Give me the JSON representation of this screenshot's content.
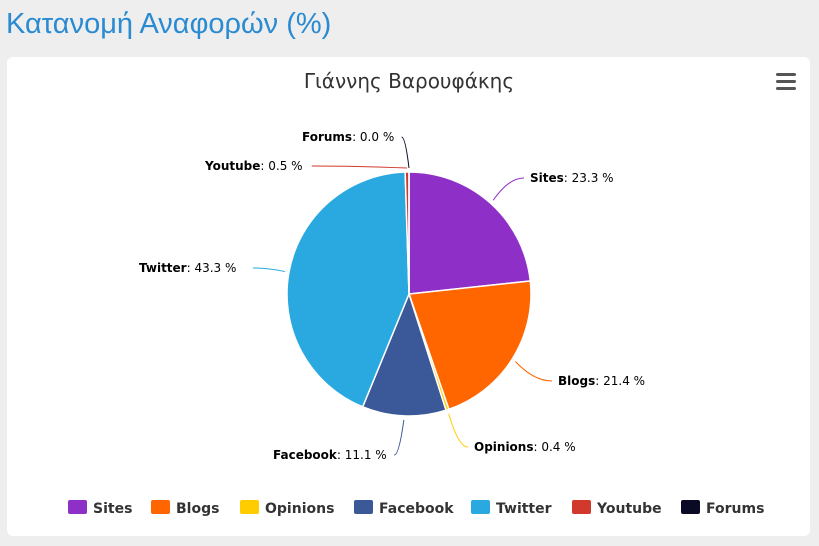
{
  "page": {
    "heading": "Κατανομή Αναφορών (%)"
  },
  "chart_data": {
    "type": "pie",
    "title": "Γιάννης Βαρουφάκης",
    "legend_position": "bottom",
    "slices": [
      {
        "name": "Sites",
        "value": 23.3,
        "label": "23.3 %",
        "color": "#8e2fc8"
      },
      {
        "name": "Blogs",
        "value": 21.4,
        "label": "21.4 %",
        "color": "#ff6600"
      },
      {
        "name": "Opinions",
        "value": 0.4,
        "label": "0.4 %",
        "color": "#ffcc00"
      },
      {
        "name": "Facebook",
        "value": 11.1,
        "label": "11.1 %",
        "color": "#3b5998"
      },
      {
        "name": "Twitter",
        "value": 43.3,
        "label": "43.3 %",
        "color": "#29a9e0"
      },
      {
        "name": "Youtube",
        "value": 0.5,
        "label": "0.5 %",
        "color": "#d0392b"
      },
      {
        "name": "Forums",
        "value": 0.0,
        "label": "0.0 %",
        "color": "#0a0a24"
      }
    ]
  }
}
